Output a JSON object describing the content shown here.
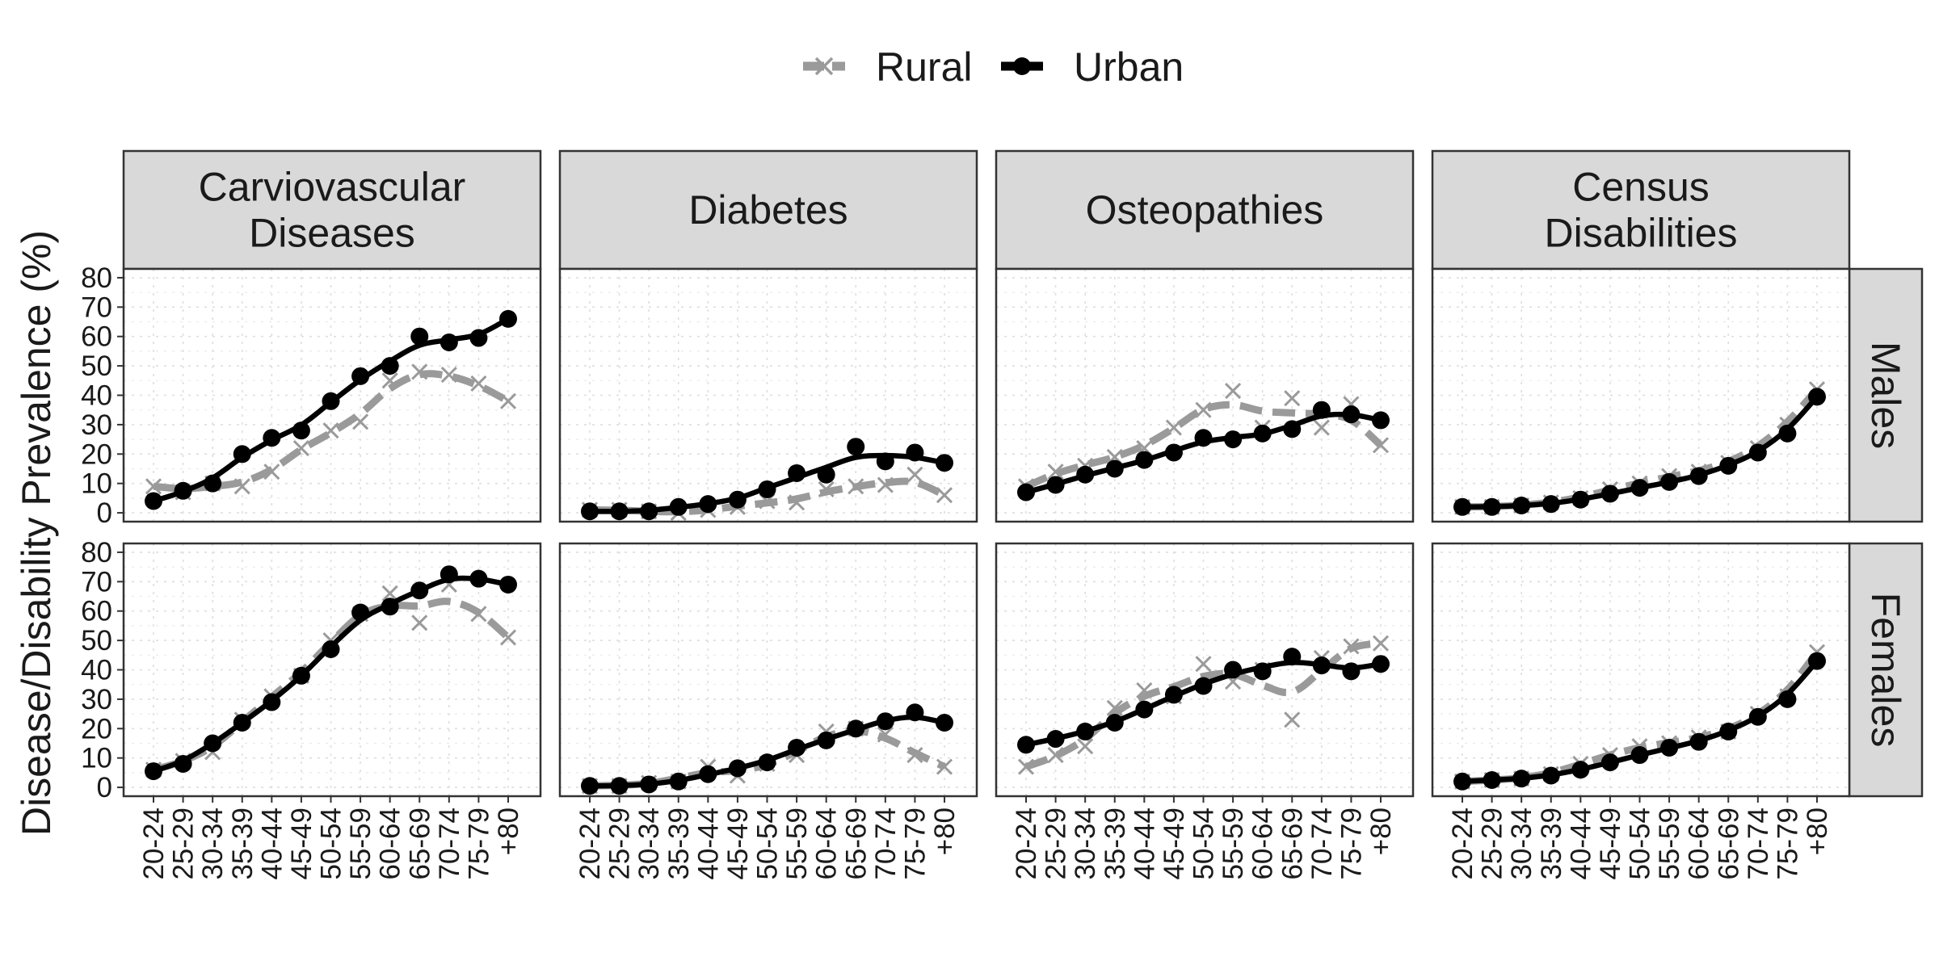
{
  "chart_data": {
    "type": "line",
    "ylabel": "Disease/Disability Prevalence (%)",
    "xlabel": "",
    "ylim": [
      -3,
      83
    ],
    "yticks": [
      0,
      10,
      20,
      30,
      40,
      50,
      60,
      70,
      80
    ],
    "grid": true,
    "legend": {
      "position": "top",
      "entries": [
        {
          "name": "Rural",
          "color": "#9a9a9a",
          "marker": "cross",
          "linestyle": "dashed"
        },
        {
          "name": "Urban",
          "color": "#000000",
          "marker": "circle",
          "linestyle": "solid"
        }
      ]
    },
    "categories": [
      "20-24",
      "25-29",
      "30-34",
      "35-39",
      "40-44",
      "45-49",
      "50-54",
      "55-59",
      "60-64",
      "65-69",
      "70-74",
      "75-79",
      "+80"
    ],
    "columns": [
      {
        "key": "cvd",
        "label_lines": [
          "Carviovascular",
          "Diseases"
        ]
      },
      {
        "key": "diabetes",
        "label_lines": [
          "Diabetes"
        ]
      },
      {
        "key": "osteo",
        "label_lines": [
          "Osteopathies"
        ]
      },
      {
        "key": "census",
        "label_lines": [
          "Census",
          "Disabilities"
        ]
      }
    ],
    "rows": [
      {
        "key": "males",
        "label": "Males"
      },
      {
        "key": "females",
        "label": "Females"
      }
    ],
    "panels": {
      "males": {
        "cvd": {
          "Rural": [
            9,
            7,
            10,
            9,
            14,
            22,
            28,
            31,
            45,
            48,
            47,
            44,
            38
          ],
          "Urban": [
            4,
            7.5,
            10,
            20,
            25.5,
            28,
            38,
            46.5,
            50,
            60,
            58,
            59.5,
            66
          ]
        },
        "diabetes": {
          "Rural": [
            1,
            1,
            0.5,
            0,
            1,
            2,
            4,
            3.5,
            8,
            9,
            9.5,
            13,
            6
          ],
          "Urban": [
            0.5,
            0.5,
            0.5,
            2,
            3,
            4.5,
            8,
            13.5,
            13,
            22.5,
            17.5,
            20.5,
            17
          ]
        },
        "osteo": {
          "Rural": [
            9,
            14,
            16,
            19,
            22,
            29,
            35,
            41.5,
            29,
            39,
            29,
            37,
            23
          ],
          "Urban": [
            7,
            9.5,
            13,
            15,
            18,
            20.5,
            25.5,
            25,
            27,
            28.5,
            35,
            33.5,
            31.5
          ]
        },
        "census": {
          "Rural": [
            2,
            2,
            2.5,
            3.5,
            5,
            8,
            10,
            12.5,
            14,
            17,
            22,
            30,
            42
          ],
          "Urban": [
            2,
            2,
            2.5,
            3,
            4.5,
            6.5,
            8.5,
            10.5,
            12.5,
            16,
            20.5,
            27,
            39.5
          ]
        }
      },
      "females": {
        "cvd": {
          "Rural": [
            6,
            9,
            12,
            23,
            31,
            38,
            50,
            59,
            66,
            56,
            69,
            59,
            51
          ],
          "Urban": [
            5.5,
            8,
            15,
            22,
            29,
            38,
            47,
            59.5,
            61.5,
            67,
            72.5,
            71,
            69
          ]
        },
        "diabetes": {
          "Rural": [
            0.5,
            0.5,
            1.5,
            2,
            7,
            4,
            8,
            11,
            19,
            20,
            18,
            11,
            7
          ],
          "Urban": [
            0.5,
            0.5,
            1,
            2,
            4.5,
            6.5,
            8.5,
            13.5,
            16,
            20,
            22.5,
            25.5,
            22
          ]
        },
        "osteo": {
          "Rural": [
            7,
            11,
            14,
            27,
            33,
            31,
            42,
            36,
            40,
            23,
            44,
            48,
            49
          ],
          "Urban": [
            14.5,
            16.5,
            19,
            22,
            26.5,
            31.5,
            34.5,
            40,
            39.5,
            44.5,
            41.5,
            39.5,
            42
          ]
        },
        "census": {
          "Rural": [
            2,
            2.5,
            3,
            4.5,
            8,
            11,
            14,
            15,
            17,
            19,
            25,
            31,
            46
          ],
          "Urban": [
            2,
            2.5,
            3,
            4,
            6,
            8.5,
            11,
            13.5,
            15.5,
            19,
            24,
            30,
            43
          ]
        }
      }
    }
  }
}
